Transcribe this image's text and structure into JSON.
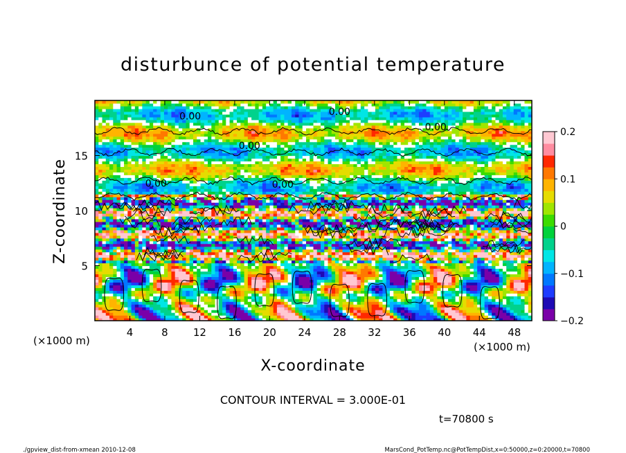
{
  "chart_data": {
    "type": "heatmap",
    "title": "disturbunce of potential temperature",
    "xlabel": "X-coordinate",
    "ylabel": "Z-coordinate",
    "x_unit": "(×1000 m)",
    "y_unit": "(×1000 m)",
    "xlim": [
      0,
      50
    ],
    "ylim": [
      0,
      20
    ],
    "x_ticks": [
      4,
      8,
      12,
      16,
      20,
      24,
      28,
      32,
      36,
      40,
      44,
      48
    ],
    "y_ticks": [
      5,
      10,
      15
    ],
    "colorbar": {
      "range": [
        -0.2,
        0.2
      ],
      "ticks": [
        {
          "value": 0.2,
          "label": "0.2"
        },
        {
          "value": 0.1,
          "label": "0.1"
        },
        {
          "value": 0.0,
          "label": "0"
        },
        {
          "value": -0.1,
          "label": "−0.1"
        },
        {
          "value": -0.2,
          "label": "−0.2"
        }
      ],
      "colors": [
        "#7a00a8",
        "#1e0ab4",
        "#1e3cff",
        "#0078ff",
        "#00b4ff",
        "#00e6e6",
        "#00d28c",
        "#00d23c",
        "#3cdc00",
        "#a0e600",
        "#e6dc00",
        "#ffb400",
        "#ff7800",
        "#ff2800",
        "#ff8ca0",
        "#ffc8d2"
      ]
    },
    "contour_labels": [
      {
        "x": 10.9,
        "z": 18.6,
        "text": "0.00"
      },
      {
        "x": 28.0,
        "z": 19.0,
        "text": "0.00"
      },
      {
        "x": 39.0,
        "z": 17.6,
        "text": "0.00"
      },
      {
        "x": 17.7,
        "z": 15.9,
        "text": "0.00"
      },
      {
        "x": 7.0,
        "z": 12.5,
        "text": "0.00"
      },
      {
        "x": 21.5,
        "z": 12.4,
        "text": "0.00"
      }
    ],
    "contour_interval": "CONTOUR INTERVAL = 3.000E-01",
    "time_label": "t=70800 s"
  },
  "footer": {
    "left": "./gpview_dist-from-xmean   2010-12-08",
    "right": "MarsCond_PotTemp.nc@PotTempDist,x=0:50000,z=0:20000,t=70800"
  }
}
